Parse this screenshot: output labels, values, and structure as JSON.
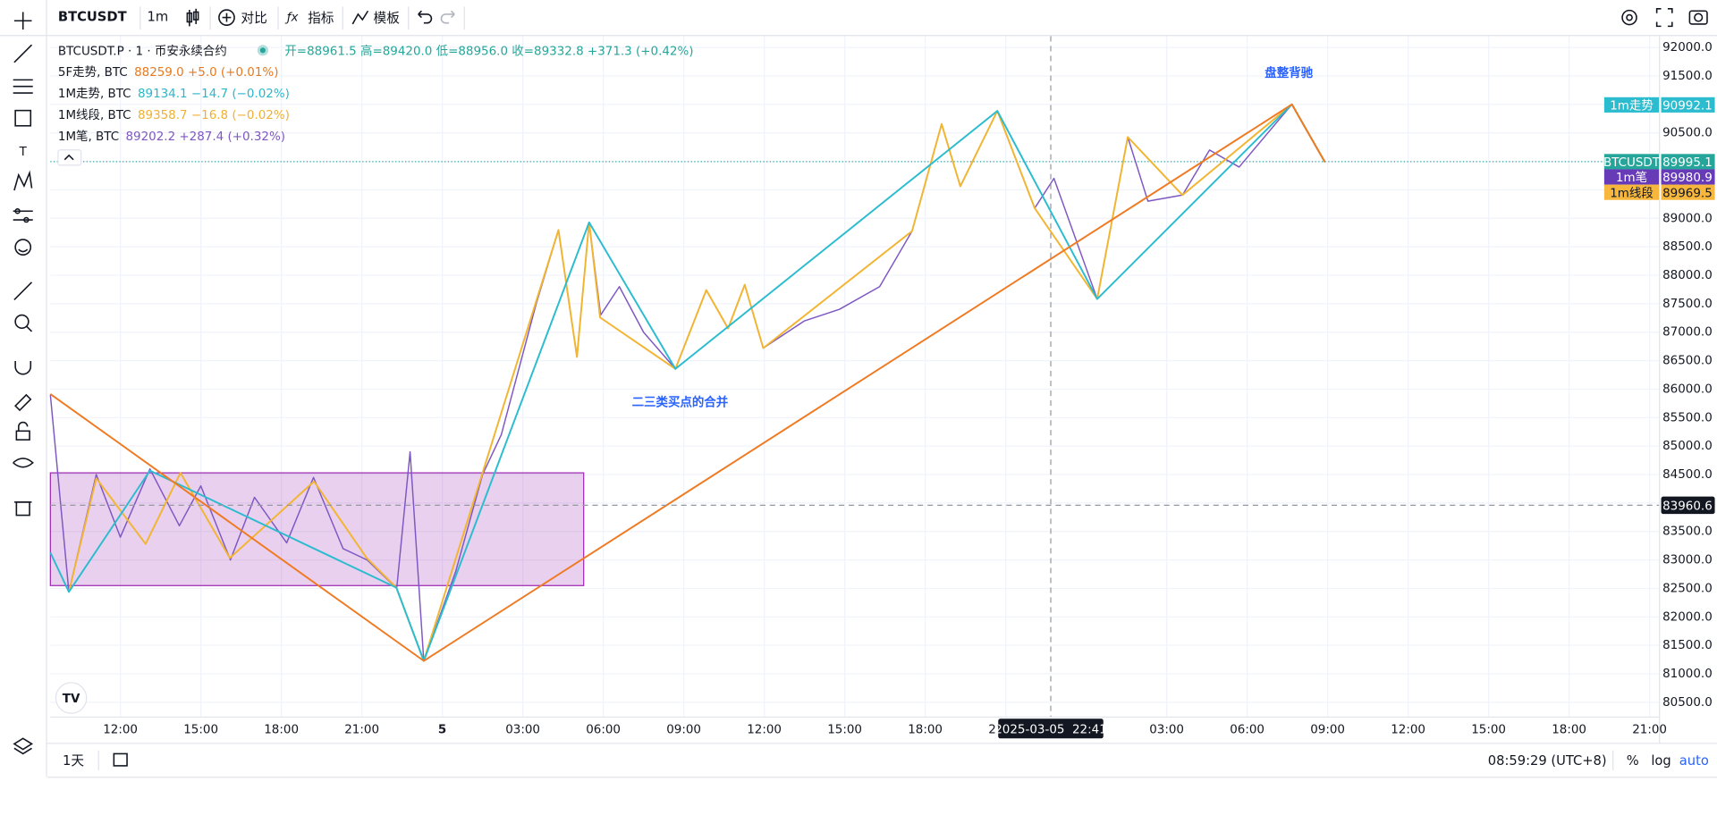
{
  "toolbar": {
    "symbol": "BTCUSDT",
    "interval": "1m",
    "compare": "对比",
    "indicators": "指标",
    "templates": "模板"
  },
  "legend": {
    "symbol_line": "BTCUSDT.P · 1 · 币安永续合约",
    "ohlc": "开=88961.5 高=89420.0 低=88956.0 收=89332.8 +371.3 (+0.42%)",
    "rows": [
      {
        "name": "5F走势, BTC",
        "value": "88259.0 +5.0 (+0.01%)",
        "color": "#e8791f"
      },
      {
        "name": "1M走势, BTC",
        "value": "89134.1 −14.7 (−0.02%)",
        "color": "#2bb7cb"
      },
      {
        "name": "1M线段, BTC",
        "value": "89358.7 −16.8 (−0.02%)",
        "color": "#efb034"
      },
      {
        "name": "1M笔, BTC",
        "value": "89202.2 +287.4 (+0.32%)",
        "color": "#7e57c2"
      }
    ]
  },
  "chart_data": {
    "type": "line",
    "annotations": [
      "盘整背驰",
      "二三类买点的合并"
    ],
    "xlim": [
      9.39,
      69.35
    ],
    "ylim": [
      80250,
      92200
    ],
    "grid": true,
    "xticks": [
      {
        "value": 12,
        "label": "12:00"
      },
      {
        "value": 15,
        "label": "15:00"
      },
      {
        "value": 18,
        "label": "18:00"
      },
      {
        "value": 21,
        "label": "21:00"
      },
      {
        "value": 24,
        "label": "5"
      },
      {
        "value": 27,
        "label": "03:00"
      },
      {
        "value": 30,
        "label": "06:00"
      },
      {
        "value": 33,
        "label": "09:00"
      },
      {
        "value": 36,
        "label": "12:00"
      },
      {
        "value": 39,
        "label": "15:00"
      },
      {
        "value": 42,
        "label": "18:00"
      },
      {
        "value": 45,
        "label": "21:00"
      },
      {
        "value": 51,
        "label": "03:00"
      },
      {
        "value": 54,
        "label": "06:00"
      },
      {
        "value": 57,
        "label": "09:00"
      },
      {
        "value": 60,
        "label": "12:00"
      },
      {
        "value": 63,
        "label": "15:00"
      },
      {
        "value": 66,
        "label": "18:00"
      },
      {
        "value": 69,
        "label": "21:00"
      }
    ],
    "yticks": [
      {
        "value": 80500,
        "label": "80500.0"
      },
      {
        "value": 81000,
        "label": "81000.0"
      },
      {
        "value": 81500,
        "label": "81500.0"
      },
      {
        "value": 82000,
        "label": "82000.0"
      },
      {
        "value": 82500,
        "label": "82500.0"
      },
      {
        "value": 83000,
        "label": "83000.0"
      },
      {
        "value": 83500,
        "label": "83500.0"
      },
      {
        "value": 84000,
        "label": "84000.0"
      },
      {
        "value": 84500,
        "label": "84500.0"
      },
      {
        "value": 85000,
        "label": "85000.0"
      },
      {
        "value": 85500,
        "label": "85500.0"
      },
      {
        "value": 86000,
        "label": "86000.0"
      },
      {
        "value": 86500,
        "label": "86500.0"
      },
      {
        "value": 87000,
        "label": "87000.0"
      },
      {
        "value": 87500,
        "label": "87500.0"
      },
      {
        "value": 88000,
        "label": "88000.0"
      },
      {
        "value": 88500,
        "label": "88500.0"
      },
      {
        "value": 89000,
        "label": "89000.0"
      },
      {
        "value": 89500,
        "label": "89500.0"
      },
      {
        "value": 90000,
        "label": "90000.0"
      },
      {
        "value": 90500,
        "label": "90500.0"
      },
      {
        "value": 91000,
        "label": "91000.0"
      },
      {
        "value": 91500,
        "label": "91500.0"
      },
      {
        "value": 92000,
        "label": "92000.0"
      }
    ],
    "box": {
      "x": [
        9.39,
        29.27
      ],
      "y": [
        82550,
        84530
      ],
      "color": "#9c27b0"
    },
    "series": [
      {
        "name": "1m笔",
        "color": "#7e57c2",
        "x": [
          9.39,
          10.08,
          11.1,
          12.0,
          13.1,
          14.2,
          15.0,
          16.1,
          17.0,
          18.2,
          19.2,
          20.3,
          21.2,
          22.3,
          22.8,
          23.31,
          24.5,
          25.5,
          26.2,
          27.5,
          28.33,
          29.02,
          29.47,
          29.9,
          30.6,
          31.5,
          32.69,
          33.84,
          34.65,
          35.27,
          35.96,
          37.5,
          38.8,
          40.3,
          41.51,
          42.61,
          43.31,
          44.69,
          46.08,
          46.8,
          48.41,
          49.55,
          50.3,
          51.59,
          52.6,
          53.7,
          55.67,
          56.9
        ],
        "values": [
          85900,
          82438,
          84500,
          83400,
          84600,
          83600,
          84300,
          83000,
          84100,
          83300,
          84450,
          83200,
          83000,
          82500,
          84900,
          81228,
          82800,
          84500,
          85200,
          87500,
          88794,
          86566,
          88928,
          87300,
          87800,
          87000,
          86355,
          87738,
          87066,
          87834,
          86720,
          87200,
          87400,
          87800,
          88774,
          90656,
          89562,
          90886,
          89178,
          89700,
          87584,
          90426,
          89300,
          89408,
          90200,
          89900,
          91002,
          89984
        ]
      },
      {
        "name": "1m线段",
        "color": "#f2b531",
        "x": [
          10.08,
          11.1,
          12.94,
          14.24,
          16.08,
          19.22,
          21.18,
          22.29,
          23.31,
          28.33,
          29.02,
          29.47,
          29.88,
          32.69,
          33.84,
          34.65,
          35.27,
          35.96,
          41.51,
          42.61,
          43.31,
          44.69,
          46.08,
          48.41,
          49.55,
          51.59,
          55.67,
          56.9
        ],
        "values": [
          82438,
          84435,
          83282,
          84531,
          83034,
          84378,
          83034,
          82514,
          81228,
          88794,
          86566,
          88928,
          87258,
          86355,
          87738,
          87066,
          87834,
          86720,
          88774,
          90656,
          89562,
          90886,
          89178,
          87584,
          90426,
          89408,
          91002,
          89984
        ]
      },
      {
        "name": "1m走势",
        "color": "#2bbccf",
        "x": [
          9.39,
          10.08,
          13.1,
          22.29,
          23.31,
          29.47,
          32.69,
          44.69,
          48.41,
          55.67,
          56.9
        ],
        "values": [
          83129,
          82438,
          84569,
          82514,
          81228,
          88928,
          86355,
          90886,
          87584,
          91002,
          89984
        ]
      },
      {
        "name": "5F走势",
        "color": "#f07a22",
        "x": [
          9.39,
          23.31,
          55.67,
          56.9
        ],
        "values": [
          85913,
          81228,
          91002,
          89984
        ]
      }
    ],
    "price_labels": [
      {
        "label": "1m走势",
        "value": 90992.1,
        "color": "#2bbccf"
      },
      {
        "label": "BTCUSDT",
        "value": 89995.1,
        "color": "#26a69a"
      },
      {
        "label": "1m笔",
        "value": 89980.9,
        "color": "#673ab7"
      },
      {
        "label": "1m线段",
        "value": 89969.5,
        "color": "#f6b73c"
      }
    ],
    "last_price": 89995.1,
    "crosshair": {
      "x": 46.68,
      "y": 83960.6,
      "x_label": "2025-03-05  22:41"
    }
  },
  "status": {
    "range": "1天",
    "clock": "08:59:29 (UTC+8)",
    "percent": "%",
    "log": "log",
    "auto": "auto"
  }
}
